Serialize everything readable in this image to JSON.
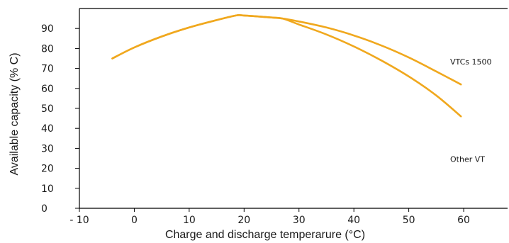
{
  "chart_data": {
    "type": "line",
    "title": "",
    "xlabel": "Charge and discharge temperarure (°C)",
    "ylabel": "Available capacity (% C)",
    "xlim": [
      -10,
      68
    ],
    "ylim": [
      0,
      100
    ],
    "x_ticks": [
      -10,
      0,
      10,
      20,
      30,
      40,
      50,
      60
    ],
    "x_tick_labels": [
      "- 10",
      "0",
      "10",
      "20",
      "30",
      "40",
      "50",
      "60"
    ],
    "y_ticks": [
      0,
      10,
      20,
      30,
      40,
      50,
      60,
      70,
      80,
      90
    ],
    "y_tick_labels": [
      "0",
      "10",
      "20",
      "30",
      "40",
      "50",
      "60",
      "70",
      "80",
      "90"
    ],
    "grid": false,
    "legend": "none",
    "line_color": "#F0A81E",
    "series": [
      {
        "name": "VTCs 1500",
        "x": [
          -4,
          0,
          5,
          10,
          15,
          18.5,
          20,
          25,
          27,
          30,
          35,
          40,
          45,
          50,
          55,
          59.5
        ],
        "y": [
          75,
          80.5,
          86,
          90.5,
          94.2,
          96.5,
          96.5,
          95.5,
          95,
          93.5,
          90.5,
          86.5,
          81.5,
          75.5,
          68.5,
          62
        ]
      },
      {
        "name": "Other VT",
        "x": [
          -4,
          0,
          5,
          10,
          15,
          18.5,
          20,
          25,
          27,
          30,
          35,
          40,
          45,
          50,
          55,
          59.5
        ],
        "y": [
          75,
          80.5,
          86,
          90.5,
          94.2,
          96.5,
          96.5,
          95.5,
          95,
          92,
          87,
          81,
          74,
          66,
          56.5,
          46
        ]
      }
    ]
  }
}
